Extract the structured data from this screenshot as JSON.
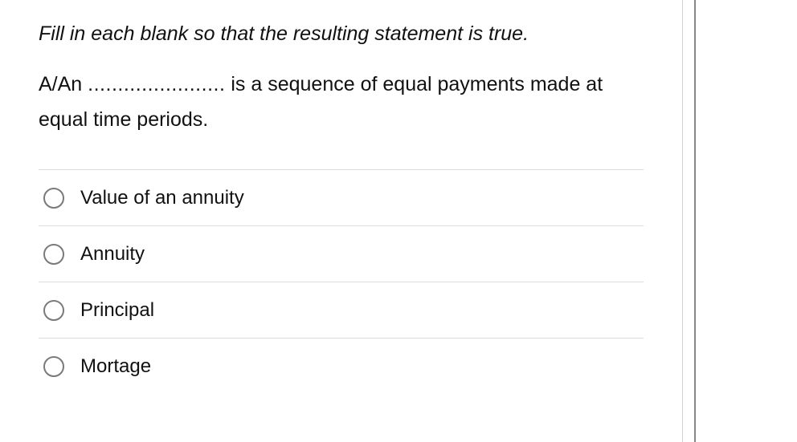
{
  "instruction": "Fill in each blank so that the resulting statement is true.",
  "stem_prefix": "A/An ",
  "blank_dots": ".......................",
  "stem_suffix": " is a sequence of equal payments made at equal time periods.",
  "options": [
    {
      "label": "Value of an annuity"
    },
    {
      "label": "Annuity"
    },
    {
      "label": "Principal"
    },
    {
      "label": "Mortage"
    }
  ],
  "colors": {
    "text": "#111111",
    "divider": "#dcdcdc",
    "radio_border": "#7a7a7a",
    "frame_border": "#d0d0d0",
    "outer_line": "#888888",
    "background": "#ffffff"
  }
}
